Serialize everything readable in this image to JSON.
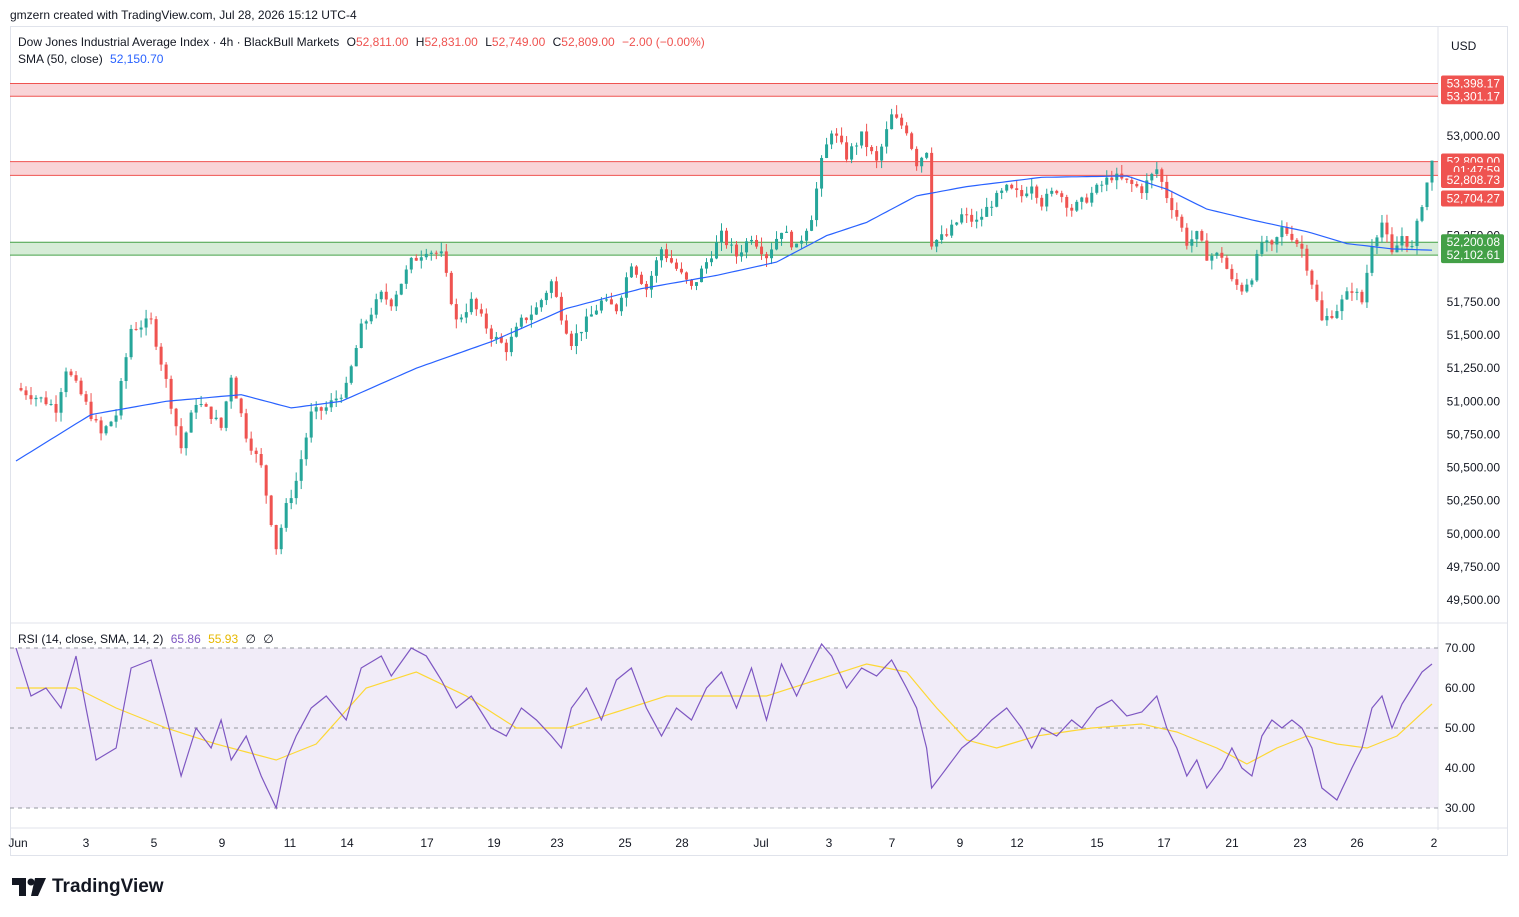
{
  "header": {
    "text": "gmzern created with TradingView.com, Jul 28, 2026 15:12 UTC-4"
  },
  "legend": {
    "symbol": "Dow Jones Industrial Average Index · 4h · BlackBull Markets",
    "o_label": "O",
    "o": "52,811.00",
    "h_label": "H",
    "h": "52,831.00",
    "l_label": "L",
    "l": "52,749.00",
    "c_label": "C",
    "c": "52,809.00",
    "chg": "−2.00 (−0.00%)",
    "sma_label": "SMA (50, close)",
    "sma_value": "52,150.70",
    "rsi_label": "RSI (14, close, SMA, 14, 2)",
    "rsi_value": "65.86",
    "rsi_ma_value": "55.93",
    "rsi_extra1": "∅",
    "rsi_extra2": "∅"
  },
  "currency": "USD",
  "logo_text": "TradingView",
  "colors": {
    "up": "#26a69a",
    "down": "#ef5350",
    "sma": "#2962ff",
    "rsi": "#7e57c2",
    "rsi_ma": "#fdd835",
    "resistance_fill": "#f7c6c9",
    "support_fill": "#c8e6c9",
    "rsi_band": "#ede7f6"
  },
  "price_axis": {
    "labels": [
      "53,000.00",
      "52,250.00",
      "51,750.00",
      "51,500.00",
      "51,250.00",
      "51,000.00",
      "50,750.00",
      "50,500.00",
      "50,250.00",
      "50,000.00",
      "49,750.00",
      "49,500.00"
    ],
    "badges": [
      {
        "text": "53,398.17",
        "value": 53398.17,
        "color": "#ef5350"
      },
      {
        "text": "53,301.17",
        "value": 53301.17,
        "color": "#ef5350"
      },
      {
        "text": "52,809.00",
        "value": 52809.0,
        "color": "#ef5350"
      },
      {
        "text": "01:47:59",
        "value": 52740,
        "color": "#ef5350"
      },
      {
        "text": "52,808.73",
        "value": 52670,
        "color": "#ef5350"
      },
      {
        "text": "52,704.27",
        "value": 52530,
        "color": "#ef5350"
      },
      {
        "text": "52,200.08",
        "value": 52200.08,
        "color": "#43a047"
      },
      {
        "text": "52,102.61",
        "value": 52102.61,
        "color": "#43a047"
      }
    ]
  },
  "rsi_axis": {
    "labels": [
      "70.00",
      "60.00",
      "50.00",
      "40.00",
      "30.00"
    ]
  },
  "time_axis": {
    "labels": [
      "Jun",
      "3",
      "5",
      "9",
      "11",
      "14",
      "17",
      "19",
      "23",
      "25",
      "28",
      "Jul",
      "3",
      "7",
      "9",
      "12",
      "15",
      "17",
      "21",
      "23",
      "26",
      "2"
    ]
  },
  "chart_data": {
    "type": "candlestick",
    "title": "Dow Jones Industrial Average Index · 4h · BlackBull Markets",
    "ylim": [
      49350,
      53560
    ],
    "zones": [
      {
        "name": "resistance-upper",
        "from": 53301.17,
        "to": 53398.17
      },
      {
        "name": "resistance-mid",
        "from": 52704.27,
        "to": 52808.73
      },
      {
        "name": "support",
        "from": 52102.61,
        "to": 52200.08
      }
    ],
    "anchors": [
      [
        0,
        51100
      ],
      [
        6,
        51000
      ],
      [
        8,
        50950
      ],
      [
        10,
        51250
      ],
      [
        13,
        51050
      ],
      [
        17,
        50750
      ],
      [
        20,
        50900
      ],
      [
        23,
        51550
      ],
      [
        27,
        51600
      ],
      [
        30,
        51150
      ],
      [
        33,
        50650
      ],
      [
        36,
        51000
      ],
      [
        39,
        50900
      ],
      [
        41,
        50800
      ],
      [
        43,
        51200
      ],
      [
        46,
        50750
      ],
      [
        49,
        50500
      ],
      [
        52,
        49900
      ],
      [
        54,
        50200
      ],
      [
        56,
        50400
      ],
      [
        59,
        50900
      ],
      [
        62,
        50950
      ],
      [
        66,
        51100
      ],
      [
        69,
        51550
      ],
      [
        73,
        51800
      ],
      [
        75,
        51750
      ],
      [
        79,
        52050
      ],
      [
        82,
        52150
      ],
      [
        85,
        52100
      ],
      [
        88,
        51600
      ],
      [
        91,
        51750
      ],
      [
        95,
        51500
      ],
      [
        98,
        51400
      ],
      [
        101,
        51600
      ],
      [
        104,
        51700
      ],
      [
        107,
        51900
      ],
      [
        109,
        51650
      ],
      [
        111,
        51450
      ],
      [
        114,
        51600
      ],
      [
        117,
        51750
      ],
      [
        120,
        51700
      ],
      [
        123,
        52050
      ],
      [
        126,
        51850
      ],
      [
        129,
        52150
      ],
      [
        132,
        52000
      ],
      [
        135,
        51850
      ],
      [
        138,
        52050
      ],
      [
        141,
        52250
      ],
      [
        144,
        52100
      ],
      [
        147,
        52250
      ],
      [
        150,
        52100
      ],
      [
        153,
        52300
      ],
      [
        156,
        52150
      ],
      [
        159,
        52400
      ],
      [
        161,
        52800
      ],
      [
        163,
        53050
      ],
      [
        166,
        52850
      ],
      [
        169,
        53000
      ],
      [
        172,
        52800
      ],
      [
        175,
        53150
      ],
      [
        178,
        53050
      ],
      [
        180,
        52800
      ],
      [
        182,
        52900
      ],
      [
        183,
        52200
      ],
      [
        186,
        52250
      ],
      [
        189,
        52400
      ],
      [
        192,
        52350
      ],
      [
        195,
        52500
      ],
      [
        198,
        52600
      ],
      [
        201,
        52550
      ],
      [
        203,
        52650
      ],
      [
        205,
        52500
      ],
      [
        208,
        52600
      ],
      [
        211,
        52450
      ],
      [
        213,
        52500
      ],
      [
        216,
        52600
      ],
      [
        219,
        52700
      ],
      [
        222,
        52650
      ],
      [
        225,
        52600
      ],
      [
        228,
        52750
      ],
      [
        230,
        52550
      ],
      [
        232,
        52400
      ],
      [
        234,
        52200
      ],
      [
        236,
        52250
      ],
      [
        238,
        52100
      ],
      [
        241,
        52100
      ],
      [
        243,
        51900
      ],
      [
        245,
        51850
      ],
      [
        247,
        51950
      ],
      [
        249,
        52200
      ],
      [
        251,
        52150
      ],
      [
        253,
        52300
      ],
      [
        255,
        52250
      ],
      [
        257,
        52150
      ],
      [
        259,
        51900
      ],
      [
        261,
        51600
      ],
      [
        264,
        51700
      ],
      [
        267,
        51850
      ],
      [
        269,
        51750
      ],
      [
        271,
        52200
      ],
      [
        273,
        52350
      ],
      [
        275,
        52100
      ],
      [
        277,
        52250
      ],
      [
        279,
        52150
      ],
      [
        281,
        52500
      ],
      [
        283,
        52800
      ]
    ],
    "n_bars": 284,
    "sma_anchors": [
      [
        0,
        50550
      ],
      [
        15,
        50900
      ],
      [
        30,
        51000
      ],
      [
        45,
        51050
      ],
      [
        55,
        50950
      ],
      [
        65,
        51000
      ],
      [
        80,
        51250
      ],
      [
        95,
        51450
      ],
      [
        110,
        51700
      ],
      [
        125,
        51850
      ],
      [
        140,
        51950
      ],
      [
        152,
        52050
      ],
      [
        162,
        52250
      ],
      [
        170,
        52350
      ],
      [
        180,
        52550
      ],
      [
        190,
        52620
      ],
      [
        205,
        52690
      ],
      [
        222,
        52700
      ],
      [
        230,
        52600
      ],
      [
        238,
        52450
      ],
      [
        248,
        52360
      ],
      [
        258,
        52280
      ],
      [
        266,
        52190
      ],
      [
        275,
        52150
      ],
      [
        283,
        52140
      ]
    ],
    "rsi": {
      "ylim": [
        27,
        72
      ],
      "levels": [
        70,
        50,
        30
      ],
      "anchors": [
        [
          0,
          70
        ],
        [
          3,
          58
        ],
        [
          6,
          60
        ],
        [
          9,
          55
        ],
        [
          12,
          68
        ],
        [
          16,
          42
        ],
        [
          20,
          45
        ],
        [
          23,
          65
        ],
        [
          27,
          67
        ],
        [
          30,
          53
        ],
        [
          33,
          38
        ],
        [
          36,
          50
        ],
        [
          39,
          45
        ],
        [
          41,
          52
        ],
        [
          43,
          42
        ],
        [
          46,
          48
        ],
        [
          49,
          38
        ],
        [
          52,
          30
        ],
        [
          54,
          42
        ],
        [
          56,
          48
        ],
        [
          59,
          55
        ],
        [
          62,
          58
        ],
        [
          66,
          52
        ],
        [
          69,
          65
        ],
        [
          73,
          68
        ],
        [
          75,
          63
        ],
        [
          79,
          70
        ],
        [
          82,
          68
        ],
        [
          85,
          62
        ],
        [
          88,
          55
        ],
        [
          91,
          58
        ],
        [
          95,
          50
        ],
        [
          98,
          48
        ],
        [
          101,
          55
        ],
        [
          104,
          52
        ],
        [
          107,
          48
        ],
        [
          109,
          45
        ],
        [
          111,
          55
        ],
        [
          114,
          60
        ],
        [
          117,
          52
        ],
        [
          120,
          62
        ],
        [
          123,
          65
        ],
        [
          126,
          55
        ],
        [
          129,
          48
        ],
        [
          132,
          55
        ],
        [
          135,
          52
        ],
        [
          138,
          60
        ],
        [
          141,
          64
        ],
        [
          144,
          55
        ],
        [
          147,
          65
        ],
        [
          150,
          52
        ],
        [
          153,
          66
        ],
        [
          156,
          58
        ],
        [
          159,
          66
        ],
        [
          161,
          71
        ],
        [
          163,
          68
        ],
        [
          166,
          60
        ],
        [
          169,
          65
        ],
        [
          172,
          63
        ],
        [
          175,
          67
        ],
        [
          178,
          60
        ],
        [
          180,
          55
        ],
        [
          182,
          45
        ],
        [
          183,
          35
        ],
        [
          186,
          40
        ],
        [
          189,
          45
        ],
        [
          192,
          48
        ],
        [
          195,
          52
        ],
        [
          198,
          55
        ],
        [
          201,
          50
        ],
        [
          203,
          45
        ],
        [
          205,
          50
        ],
        [
          208,
          48
        ],
        [
          211,
          52
        ],
        [
          213,
          50
        ],
        [
          216,
          55
        ],
        [
          219,
          57
        ],
        [
          222,
          53
        ],
        [
          225,
          54
        ],
        [
          228,
          58
        ],
        [
          230,
          50
        ],
        [
          232,
          45
        ],
        [
          234,
          38
        ],
        [
          236,
          42
        ],
        [
          238,
          35
        ],
        [
          241,
          40
        ],
        [
          243,
          45
        ],
        [
          245,
          40
        ],
        [
          247,
          38
        ],
        [
          249,
          48
        ],
        [
          251,
          52
        ],
        [
          253,
          50
        ],
        [
          255,
          52
        ],
        [
          257,
          50
        ],
        [
          259,
          45
        ],
        [
          261,
          35
        ],
        [
          264,
          32
        ],
        [
          267,
          40
        ],
        [
          269,
          45
        ],
        [
          271,
          55
        ],
        [
          273,
          58
        ],
        [
          275,
          50
        ],
        [
          277,
          56
        ],
        [
          279,
          60
        ],
        [
          281,
          64
        ],
        [
          283,
          66
        ]
      ],
      "ma_anchors": [
        [
          0,
          60
        ],
        [
          12,
          60
        ],
        [
          20,
          55
        ],
        [
          30,
          50
        ],
        [
          40,
          46
        ],
        [
          52,
          42
        ],
        [
          60,
          46
        ],
        [
          70,
          60
        ],
        [
          80,
          64
        ],
        [
          90,
          58
        ],
        [
          100,
          50
        ],
        [
          110,
          50
        ],
        [
          120,
          54
        ],
        [
          130,
          58
        ],
        [
          140,
          58
        ],
        [
          150,
          58
        ],
        [
          160,
          62
        ],
        [
          170,
          66
        ],
        [
          178,
          64
        ],
        [
          184,
          55
        ],
        [
          190,
          47
        ],
        [
          196,
          45
        ],
        [
          204,
          48
        ],
        [
          215,
          50
        ],
        [
          225,
          51
        ],
        [
          232,
          49
        ],
        [
          240,
          45
        ],
        [
          246,
          41
        ],
        [
          252,
          45
        ],
        [
          258,
          48
        ],
        [
          264,
          46
        ],
        [
          270,
          45
        ],
        [
          276,
          48
        ],
        [
          283,
          56
        ]
      ]
    }
  }
}
